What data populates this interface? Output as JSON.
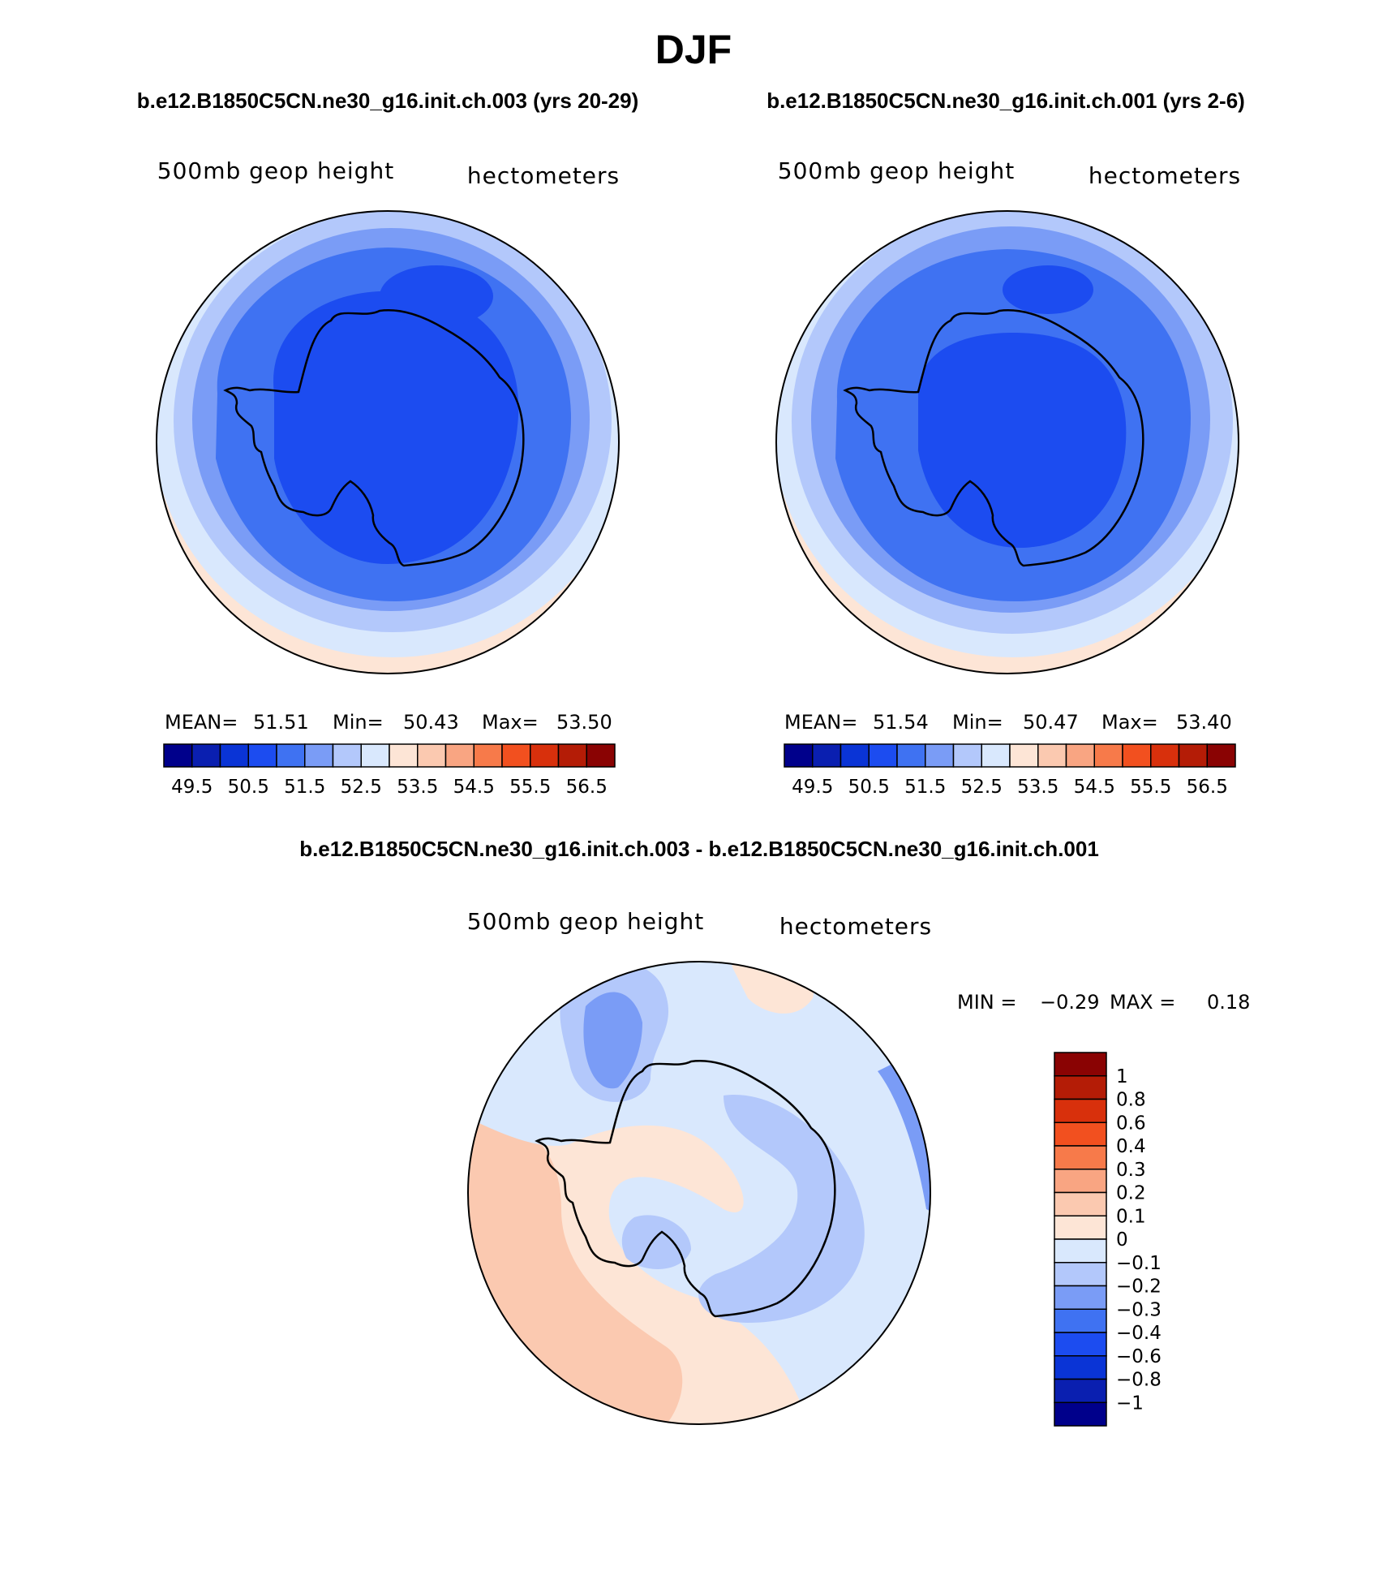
{
  "figure": {
    "title": "DJF",
    "subtitle_left": "b.e12.B1850C5CN.ne30_g16.init.ch.003 (yrs 20-29)",
    "subtitle_right": "b.e12.B1850C5CN.ne30_g16.init.ch.001 (yrs 2-6)",
    "diff_title": "b.e12.B1850C5CN.ne30_g16.init.ch.003 - b.e12.B1850C5CN.ne30_g16.init.ch.001"
  },
  "chart_data": [
    {
      "type": "polar-contour-map",
      "projection": "south-polar-stereographic",
      "variable": "500mb geop height",
      "units": "hectometers",
      "stats": {
        "mean_label": "MEAN=",
        "mean": "51.51",
        "min_label": "Min=",
        "min": "50.43",
        "max_label": "Max=",
        "max": "53.50"
      },
      "colorbar": {
        "orientation": "horizontal",
        "levels": [
          49.5,
          50.0,
          50.5,
          51.0,
          51.5,
          52.0,
          52.5,
          53.0,
          53.5,
          54.0,
          54.5,
          55.0,
          55.5,
          56.0,
          56.5
        ],
        "tick_labels": [
          "49.5",
          "50.5",
          "51.5",
          "52.5",
          "53.5",
          "54.5",
          "55.5",
          "56.5"
        ],
        "colors": [
          "#00008b",
          "#0a1fb0",
          "#0a34d6",
          "#1c4cf0",
          "#3f72f2",
          "#7a9cf6",
          "#b3c8fb",
          "#d9e8fd",
          "#fde5d6",
          "#fbc9b0",
          "#f9a582",
          "#f77a4a",
          "#f2501f",
          "#d8300c",
          "#b41c06",
          "#8a0303"
        ]
      },
      "contours": [
        {
          "level": 52.5,
          "color": "#d9e8fd"
        },
        {
          "level": 52.0,
          "color": "#b3c8fb"
        },
        {
          "level": 51.5,
          "color": "#7a9cf6"
        },
        {
          "level": 51.0,
          "color": "#3f72f2"
        },
        {
          "level": 50.5,
          "color": "#1c4cf0"
        }
      ]
    },
    {
      "type": "polar-contour-map",
      "projection": "south-polar-stereographic",
      "variable": "500mb geop height",
      "units": "hectometers",
      "stats": {
        "mean_label": "MEAN=",
        "mean": "51.54",
        "min_label": "Min=",
        "min": "50.47",
        "max_label": "Max=",
        "max": "53.40"
      },
      "colorbar": {
        "orientation": "horizontal",
        "levels": [
          49.5,
          50.0,
          50.5,
          51.0,
          51.5,
          52.0,
          52.5,
          53.0,
          53.5,
          54.0,
          54.5,
          55.0,
          55.5,
          56.0,
          56.5
        ],
        "tick_labels": [
          "49.5",
          "50.5",
          "51.5",
          "52.5",
          "53.5",
          "54.5",
          "55.5",
          "56.5"
        ],
        "colors": [
          "#00008b",
          "#0a1fb0",
          "#0a34d6",
          "#1c4cf0",
          "#3f72f2",
          "#7a9cf6",
          "#b3c8fb",
          "#d9e8fd",
          "#fde5d6",
          "#fbc9b0",
          "#f9a582",
          "#f77a4a",
          "#f2501f",
          "#d8300c",
          "#b41c06",
          "#8a0303"
        ]
      },
      "contours": [
        {
          "level": 52.5,
          "color": "#d9e8fd"
        },
        {
          "level": 52.0,
          "color": "#b3c8fb"
        },
        {
          "level": 51.5,
          "color": "#7a9cf6"
        },
        {
          "level": 51.0,
          "color": "#3f72f2"
        },
        {
          "level": 50.5,
          "color": "#1c4cf0"
        }
      ]
    },
    {
      "type": "polar-contour-map-difference",
      "projection": "south-polar-stereographic",
      "variable": "500mb geop height",
      "units": "hectometers",
      "stats": {
        "min_label": "MIN =",
        "min": "−0.29",
        "max_label": "MAX =",
        "max": "0.18"
      },
      "colorbar": {
        "orientation": "vertical",
        "tick_labels": [
          "1",
          "0.8",
          "0.6",
          "0.4",
          "0.3",
          "0.2",
          "0.1",
          "0",
          "−0.1",
          "−0.2",
          "−0.3",
          "−0.4",
          "−0.6",
          "−0.8",
          "−1"
        ],
        "colors_top_to_bottom": [
          "#8a0303",
          "#b41c06",
          "#d8300c",
          "#f2501f",
          "#f77a4a",
          "#f9a582",
          "#fbc9b0",
          "#fde5d6",
          "#d9e8fd",
          "#b3c8fb",
          "#7a9cf6",
          "#3f72f2",
          "#1c4cf0",
          "#0a34d6",
          "#0a1fb0",
          "#00008b"
        ]
      },
      "regions": [
        {
          "value_range": "0.1 to 0.2",
          "color": "#fbc9b0"
        },
        {
          "value_range": "0 to 0.1",
          "color": "#fde5d6"
        },
        {
          "value_range": "-0.1 to 0",
          "color": "#d9e8fd"
        },
        {
          "value_range": "-0.2 to -0.1",
          "color": "#b3c8fb"
        },
        {
          "value_range": "-0.3 to -0.2",
          "color": "#7a9cf6"
        }
      ]
    }
  ]
}
